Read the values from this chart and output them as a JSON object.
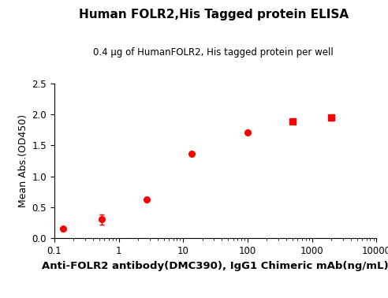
{
  "title": "Human FOLR2,His Tagged protein ELISA",
  "subtitle": "0.4 μg of HumanFOLR2, His tagged protein per well",
  "xlabel": "Anti-FOLR2 antibody(DMC390), IgG1 Chimeric mAb(ng/mL)",
  "ylabel": "Mean Abs.(OD450)",
  "color": "#FF0000",
  "x_data": [
    0.137,
    0.548,
    2.74,
    13.7,
    100,
    500,
    2000
  ],
  "y_data": [
    0.152,
    0.307,
    0.626,
    1.37,
    1.71,
    1.885,
    1.945
  ],
  "y_err": [
    0.0,
    0.085,
    0.0,
    0.0,
    0.0,
    0.025,
    0.018
  ],
  "circle_indices": [
    0,
    1,
    2,
    3,
    4
  ],
  "square_indices": [
    5,
    6
  ],
  "xlim": [
    0.1,
    10000
  ],
  "ylim": [
    0.0,
    2.5
  ],
  "yticks": [
    0.0,
    0.5,
    1.0,
    1.5,
    2.0,
    2.5
  ],
  "xticks": [
    0.1,
    1,
    10,
    100,
    1000,
    10000
  ],
  "title_fontsize": 11,
  "subtitle_fontsize": 8.5,
  "xlabel_fontsize": 9.5,
  "ylabel_fontsize": 9,
  "tick_fontsize": 8.5,
  "background_color": "#FFFFFF"
}
